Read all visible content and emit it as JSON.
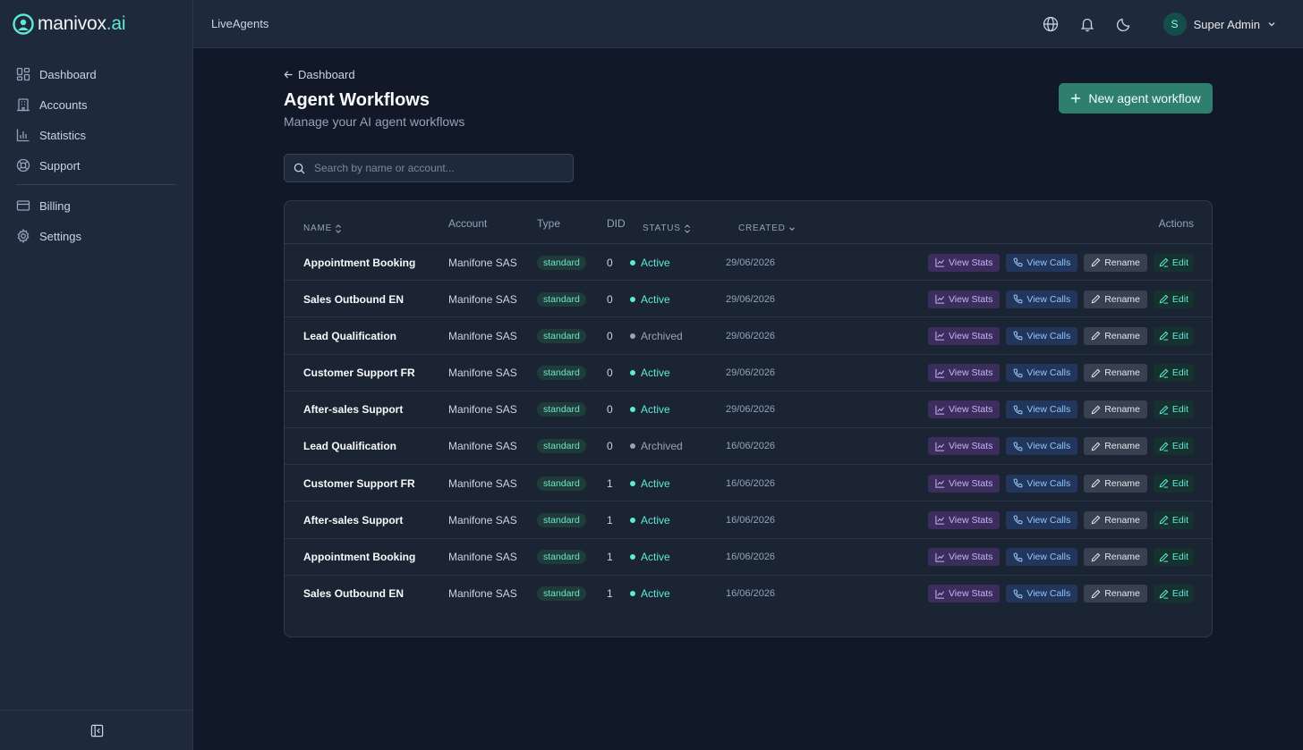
{
  "brand": {
    "name": "manivox",
    "suffix": ".ai"
  },
  "sidebar": {
    "items": [
      {
        "label": "Dashboard",
        "icon": "dashboard-icon"
      },
      {
        "label": "Accounts",
        "icon": "building-icon"
      },
      {
        "label": "Statistics",
        "icon": "bar-chart-icon"
      },
      {
        "label": "Support",
        "icon": "lifebuoy-icon"
      },
      {
        "label": "Billing",
        "icon": "credit-card-icon"
      },
      {
        "label": "Settings",
        "icon": "gear-icon"
      }
    ]
  },
  "topbar": {
    "title": "LiveAgents",
    "user": {
      "initial": "S",
      "name": "Super Admin"
    }
  },
  "page": {
    "back_label": "Dashboard",
    "title": "Agent Workflows",
    "subtitle": "Manage your AI agent workflows",
    "new_button": "New agent workflow",
    "search_placeholder": "Search by name or account..."
  },
  "table": {
    "headers": {
      "name": "Name",
      "account": "Account",
      "type": "Type",
      "did": "DID",
      "status": "Status",
      "created": "Created",
      "actions": "Actions"
    },
    "action_labels": {
      "stats": "View Stats",
      "calls": "View Calls",
      "rename": "Rename",
      "edit": "Edit"
    },
    "rows": [
      {
        "name": "Appointment Booking",
        "account": "Manifone SAS",
        "type": "standard",
        "did": "0",
        "status": "Active",
        "created": "29/06/2026"
      },
      {
        "name": "Sales Outbound EN",
        "account": "Manifone SAS",
        "type": "standard",
        "did": "0",
        "status": "Active",
        "created": "29/06/2026"
      },
      {
        "name": "Lead Qualification",
        "account": "Manifone SAS",
        "type": "standard",
        "did": "0",
        "status": "Archived",
        "created": "29/06/2026"
      },
      {
        "name": "Customer Support FR",
        "account": "Manifone SAS",
        "type": "standard",
        "did": "0",
        "status": "Active",
        "created": "29/06/2026"
      },
      {
        "name": "After-sales Support",
        "account": "Manifone SAS",
        "type": "standard",
        "did": "0",
        "status": "Active",
        "created": "29/06/2026"
      },
      {
        "name": "Lead Qualification",
        "account": "Manifone SAS",
        "type": "standard",
        "did": "0",
        "status": "Archived",
        "created": "16/06/2026"
      },
      {
        "name": "Customer Support FR",
        "account": "Manifone SAS",
        "type": "standard",
        "did": "1",
        "status": "Active",
        "created": "16/06/2026"
      },
      {
        "name": "After-sales Support",
        "account": "Manifone SAS",
        "type": "standard",
        "did": "1",
        "status": "Active",
        "created": "16/06/2026"
      },
      {
        "name": "Appointment Booking",
        "account": "Manifone SAS",
        "type": "standard",
        "did": "1",
        "status": "Active",
        "created": "16/06/2026"
      },
      {
        "name": "Sales Outbound EN",
        "account": "Manifone SAS",
        "type": "standard",
        "did": "1",
        "status": "Active",
        "created": "16/06/2026"
      }
    ]
  },
  "colors": {
    "active": "#5eead4",
    "archived": "#9ca3af",
    "accent": "#2f7f6f"
  }
}
